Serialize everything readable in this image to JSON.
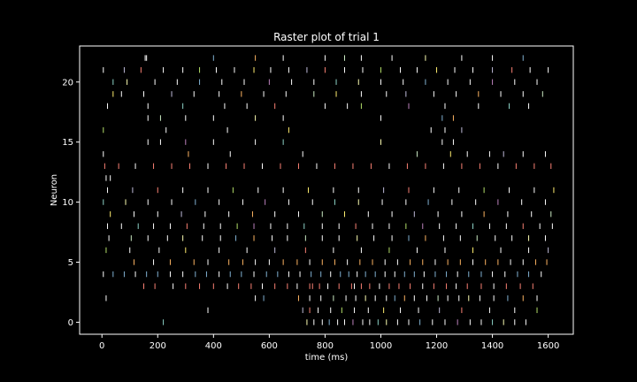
{
  "chart_data": {
    "type": "scatter",
    "marker": "vertical-line",
    "title": "Raster plot of trial 1",
    "xlabel": "time (ms)",
    "ylabel": "Neuron",
    "xlim": [
      -80,
      1690
    ],
    "ylim": [
      -1,
      23
    ],
    "xticks": [
      0,
      200,
      400,
      600,
      800,
      1000,
      1200,
      1400,
      1600
    ],
    "yticks": [
      0,
      5,
      10,
      15,
      20
    ],
    "grid": false,
    "background": "#000000",
    "foreground": "#ffffff",
    "palette": [
      "#8dd3c7",
      "#feffb3",
      "#bfbbd9",
      "#fa8174",
      "#81b1d2",
      "#fdb462",
      "#b3de69",
      "#bc82bd",
      "#ccebc4",
      "#ffed6f"
    ],
    "series": [
      {
        "neuron": 0,
        "spikes": [
          220,
          735,
          760,
          790,
          815,
          845,
          870,
          900,
          935,
          960,
          990,
          1020,
          1060,
          1100,
          1140,
          1185,
          1230,
          1275,
          1320,
          1360,
          1400,
          1440,
          1480,
          1520
        ]
      },
      {
        "neuron": 1,
        "spikes": [
          380,
          720,
          745,
          775,
          820,
          860,
          905,
          955,
          1010,
          1070,
          1135,
          1210,
          1290,
          1390,
          1480,
          1560
        ]
      },
      {
        "neuron": 2,
        "spikes": [
          15,
          550,
          580,
          705,
          745,
          785,
          830,
          875,
          910,
          945,
          980,
          1020,
          1050,
          1085,
          1120,
          1165,
          1205,
          1240,
          1280,
          1315,
          1355,
          1405,
          1455,
          1510,
          1560
        ]
      },
      {
        "neuron": 3,
        "spikes": [
          150,
          190,
          255,
          300,
          350,
          400,
          450,
          490,
          535,
          575,
          620,
          665,
          700,
          745,
          755,
          780,
          810,
          850,
          895,
          905,
          930,
          960,
          995,
          1030,
          1065,
          1105,
          1150,
          1190,
          1235,
          1270,
          1310,
          1360,
          1405,
          1450,
          1500,
          1545
        ]
      },
      {
        "neuron": 4,
        "spikes": [
          5,
          40,
          80,
          120,
          160,
          200,
          245,
          290,
          335,
          375,
          420,
          460,
          500,
          545,
          590,
          630,
          670,
          710,
          750,
          785,
          820,
          855,
          885,
          915,
          945,
          980,
          1015,
          1050,
          1085,
          1120,
          1155,
          1195,
          1235,
          1275,
          1315,
          1360,
          1400,
          1445,
          1490,
          1530,
          1575
        ]
      },
      {
        "neuron": 5,
        "spikes": [
          115,
          185,
          245,
          330,
          380,
          455,
          505,
          550,
          600,
          650,
          700,
          745,
          790,
          835,
          880,
          925,
          970,
          1015,
          1060,
          1105,
          1150,
          1195,
          1240,
          1285,
          1330,
          1375,
          1420,
          1465,
          1510,
          1555,
          1595
        ]
      },
      {
        "neuron": 6,
        "spikes": [
          15,
          100,
          205,
          300,
          420,
          520,
          620,
          730,
          830,
          930,
          1030,
          1130,
          1230,
          1330,
          1430,
          1530,
          1600
        ]
      },
      {
        "neuron": 7,
        "spikes": [
          25,
          105,
          165,
          235,
          290,
          360,
          425,
          480,
          545,
          610,
          665,
          730,
          790,
          850,
          915,
          975,
          1040,
          1100,
          1160,
          1225,
          1285,
          1345,
          1410,
          1470,
          1530,
          1590
        ]
      },
      {
        "neuron": 8,
        "spikes": [
          20,
          70,
          130,
          185,
          245,
          305,
          365,
          425,
          485,
          545,
          605,
          665,
          725,
          790,
          850,
          910,
          970,
          1030,
          1090,
          1150,
          1210,
          1270,
          1330,
          1390,
          1450,
          1510,
          1570,
          1615
        ]
      },
      {
        "neuron": 9,
        "spikes": [
          30,
          115,
          200,
          285,
          370,
          455,
          540,
          620,
          705,
          790,
          870,
          955,
          1040,
          1120,
          1205,
          1290,
          1370,
          1455,
          1540,
          1610
        ]
      },
      {
        "neuron": 10,
        "spikes": [
          5,
          85,
          165,
          250,
          335,
          420,
          505,
          585,
          670,
          755,
          835,
          920,
          1005,
          1090,
          1170,
          1255,
          1340,
          1420,
          1505,
          1590
        ]
      },
      {
        "neuron": 11,
        "spikes": [
          20,
          110,
          200,
          290,
          380,
          470,
          560,
          650,
          740,
          830,
          920,
          1010,
          1100,
          1190,
          1280,
          1370,
          1460,
          1550,
          1620
        ]
      },
      {
        "neuron": 12,
        "spikes": [
          15,
          30
        ]
      },
      {
        "neuron": 13,
        "spikes": [
          10,
          60,
          120,
          185,
          250,
          315,
          380,
          445,
          510,
          575,
          640,
          705,
          770,
          835,
          900,
          965,
          1030,
          1095,
          1160,
          1225,
          1290,
          1355,
          1420,
          1485,
          1550,
          1610
        ]
      },
      {
        "neuron": 14,
        "spikes": [
          5,
          310,
          460,
          720,
          1130,
          1250,
          1310,
          1390,
          1440,
          1510,
          1590
        ]
      },
      {
        "neuron": 15,
        "spikes": [
          165,
          210,
          300,
          400,
          550,
          650,
          1000,
          1220,
          1260
        ]
      },
      {
        "neuron": 16,
        "spikes": [
          5,
          230,
          450,
          670,
          1180,
          1230,
          1290
        ]
      },
      {
        "neuron": 17,
        "spikes": [
          165,
          210,
          300,
          400,
          550,
          650,
          1000,
          1220,
          1260
        ]
      },
      {
        "neuron": 18,
        "spikes": [
          20,
          165,
          290,
          440,
          520,
          620,
          800,
          880,
          930,
          1100,
          1230,
          1350,
          1460,
          1530
        ]
      },
      {
        "neuron": 19,
        "spikes": [
          40,
          70,
          150,
          250,
          330,
          420,
          500,
          580,
          660,
          760,
          840,
          930,
          1020,
          1090,
          1190,
          1270,
          1350,
          1430,
          1510,
          1580
        ]
      },
      {
        "neuron": 20,
        "spikes": [
          40,
          90,
          190,
          270,
          350,
          430,
          510,
          600,
          680,
          760,
          840,
          920,
          1000,
          1080,
          1160,
          1240,
          1320,
          1400,
          1480,
          1560
        ]
      },
      {
        "neuron": 21,
        "spikes": [
          5,
          80,
          140,
          220,
          290,
          350,
          410,
          475,
          545,
          605,
          670,
          735,
          800,
          870,
          935,
          1000,
          1070,
          1130,
          1200,
          1265,
          1330,
          1400,
          1470,
          1535,
          1600
        ]
      },
      {
        "neuron": 22,
        "spikes": [
          155,
          160,
          400,
          550,
          650,
          800,
          870,
          930,
          1040,
          1160,
          1290,
          1400,
          1510
        ]
      }
    ]
  }
}
